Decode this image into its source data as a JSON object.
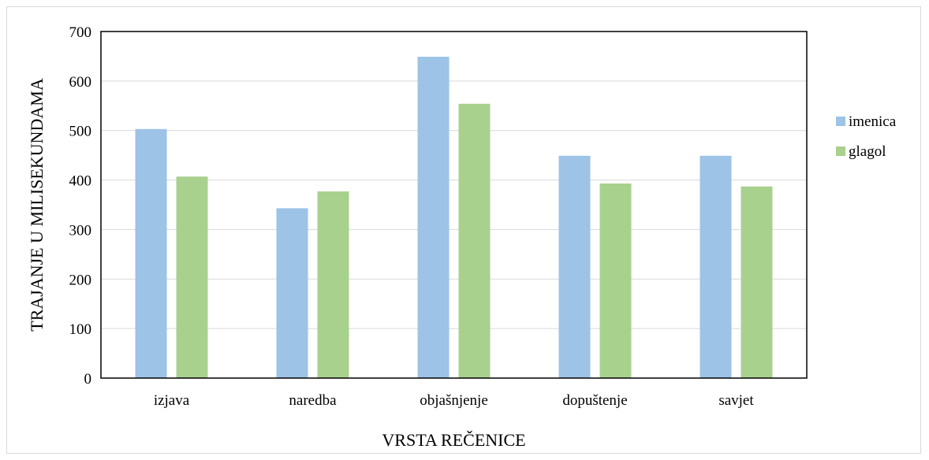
{
  "chart_data": {
    "type": "bar",
    "title": "",
    "xlabel": "VRSTA REČENICE",
    "ylabel": "TRAJANJE U MILISEKUNDAMA",
    "categories": [
      "izjava",
      "naredba",
      "objašnjenje",
      "dopuštenje",
      "savjet"
    ],
    "series": [
      {
        "name": "imenica",
        "color": "#9dc3e6",
        "values": [
          503,
          343,
          649,
          449,
          449
        ]
      },
      {
        "name": "glagol",
        "color": "#a9d18e",
        "values": [
          407,
          377,
          554,
          393,
          387
        ]
      }
    ],
    "ylim": [
      0,
      700
    ],
    "yticks": [
      "0",
      "100",
      "200",
      "300",
      "400",
      "500",
      "600",
      "700"
    ],
    "grid": true,
    "legend_position": "right"
  }
}
